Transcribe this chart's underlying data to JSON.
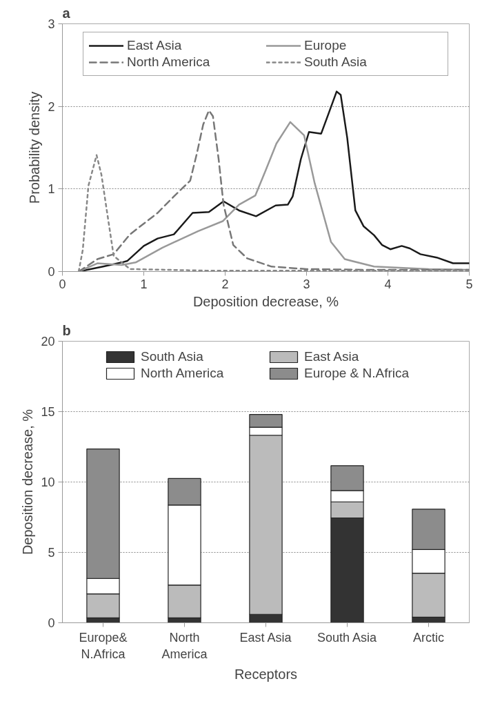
{
  "chart_data": [
    {
      "type": "line",
      "title": "a",
      "xlabel": "Deposition decrease, %",
      "ylabel": "Probability density",
      "xlim": [
        0,
        5
      ],
      "ylim": [
        0,
        3
      ],
      "xticks": [
        0,
        1,
        2,
        3,
        4,
        5
      ],
      "yticks": [
        0,
        1,
        2,
        3
      ],
      "grid": "y",
      "legend": "top",
      "marker": "none",
      "series": [
        {
          "name": "East Asia",
          "color": "#1a1a1a",
          "line_style": "solid",
          "x": [
            0.2,
            0.5,
            0.73,
            0.8,
            1.0,
            1.17,
            1.37,
            1.6,
            1.8,
            1.98,
            2.17,
            2.38,
            2.62,
            2.77,
            2.83,
            2.93,
            3.03,
            3.18,
            3.27,
            3.37,
            3.42,
            3.5,
            3.6,
            3.7,
            3.83,
            3.93,
            4.03,
            4.17,
            4.27,
            4.4,
            4.6,
            4.8,
            5.0
          ],
          "values": [
            0,
            0.06,
            0.11,
            0.13,
            0.31,
            0.4,
            0.45,
            0.71,
            0.72,
            0.85,
            0.74,
            0.67,
            0.8,
            0.81,
            0.91,
            1.36,
            1.69,
            1.67,
            1.91,
            2.18,
            2.14,
            1.62,
            0.74,
            0.55,
            0.44,
            0.32,
            0.27,
            0.31,
            0.28,
            0.21,
            0.17,
            0.1,
            0.1
          ]
        },
        {
          "name": "Europe",
          "color": "#999999",
          "line_style": "solid",
          "x": [
            0.2,
            0.43,
            0.73,
            0.9,
            1.23,
            1.67,
            1.97,
            2.17,
            2.37,
            2.5,
            2.63,
            2.8,
            2.97,
            3.1,
            3.3,
            3.47,
            3.83,
            4.5,
            5.0
          ],
          "values": [
            0,
            0.1,
            0.08,
            0.11,
            0.29,
            0.49,
            0.61,
            0.81,
            0.92,
            1.23,
            1.55,
            1.81,
            1.65,
            1.07,
            0.36,
            0.15,
            0.06,
            0.03,
            0.02
          ]
        },
        {
          "name": "North America",
          "color": "#777777",
          "line_style": "dashed",
          "x": [
            0.2,
            0.43,
            0.63,
            0.83,
            1.17,
            1.37,
            1.57,
            1.65,
            1.73,
            1.8,
            1.85,
            1.92,
            1.98,
            2.1,
            2.27,
            2.57,
            3.0,
            3.83,
            5.0
          ],
          "values": [
            0,
            0.15,
            0.21,
            0.45,
            0.71,
            0.91,
            1.1,
            1.42,
            1.78,
            1.95,
            1.88,
            1.36,
            0.81,
            0.32,
            0.16,
            0.06,
            0.03,
            0.02,
            0.02
          ]
        },
        {
          "name": "South Asia",
          "color": "#888888",
          "line_style": "dotted",
          "x": [
            0.2,
            0.25,
            0.32,
            0.42,
            0.48,
            0.55,
            0.63,
            0.83,
            1.83,
            5.0
          ],
          "values": [
            0,
            0.26,
            1.04,
            1.41,
            1.17,
            0.71,
            0.19,
            0.03,
            0.01,
            0.01
          ]
        }
      ]
    },
    {
      "type": "bar",
      "stacked": true,
      "title": "b",
      "xlabel": "Receptors",
      "ylabel": "Deposition decrease, %",
      "ylim": [
        0,
        20
      ],
      "yticks": [
        0,
        5,
        10,
        15,
        20
      ],
      "grid": "y",
      "legend": "top",
      "categories": [
        "Europe&\nN.Africa",
        "North\nAmerica",
        "East Asia",
        "South Asia",
        "Arctic"
      ],
      "series": [
        {
          "name": "South Asia",
          "color": "#333333",
          "values": [
            0.35,
            0.35,
            0.6,
            7.45,
            0.4
          ]
        },
        {
          "name": "East Asia",
          "color": "#bbbbbb",
          "values": [
            1.7,
            2.33,
            12.72,
            1.14,
            3.12
          ]
        },
        {
          "name": "North America",
          "color": "#ffffff",
          "values": [
            1.1,
            5.68,
            0.57,
            0.8,
            1.68
          ]
        },
        {
          "name": "Europe & N.Africa",
          "color": "#8c8c8c",
          "values": [
            9.2,
            1.89,
            0.91,
            1.77,
            2.87
          ]
        }
      ]
    }
  ]
}
